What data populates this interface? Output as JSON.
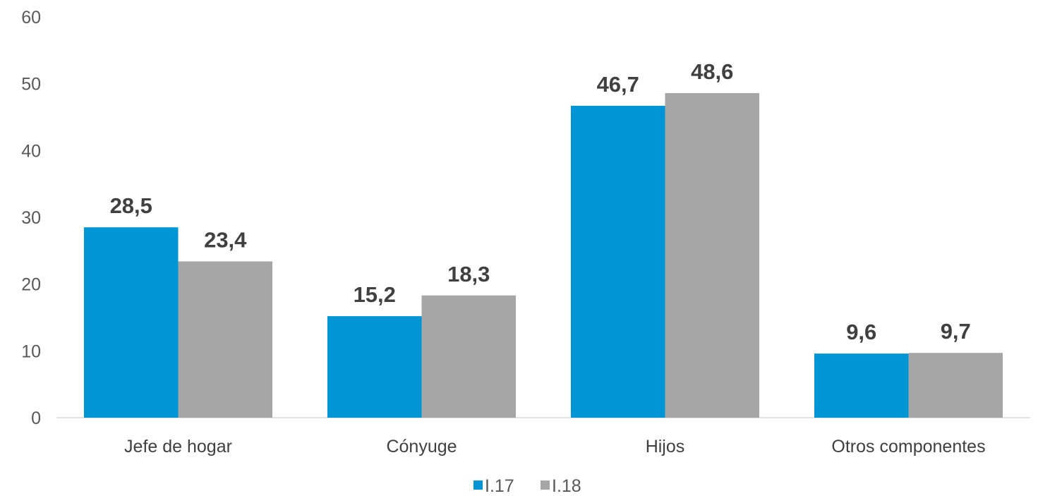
{
  "chart_data": {
    "type": "bar",
    "title": "",
    "xlabel": "",
    "ylabel": "",
    "categories": [
      "Jefe de hogar",
      "Cónyuge",
      "Hijos",
      "Otros componentes"
    ],
    "series": [
      {
        "name": "I.17",
        "color": "#0096D6",
        "values": [
          28.5,
          15.2,
          46.7,
          9.6
        ],
        "labels": [
          "28,5",
          "15,2",
          "46,7",
          "9,6"
        ]
      },
      {
        "name": "I.18",
        "color": "#A6A6A6",
        "values": [
          23.4,
          18.3,
          48.6,
          9.7
        ],
        "labels": [
          "23,4",
          "18,3",
          "48,6",
          "9,7"
        ]
      }
    ],
    "ylim": [
      0,
      60
    ],
    "yticks": [
      "0",
      "10",
      "20",
      "30",
      "40",
      "50",
      "60"
    ],
    "grid": false,
    "legend_position": "bottom"
  }
}
